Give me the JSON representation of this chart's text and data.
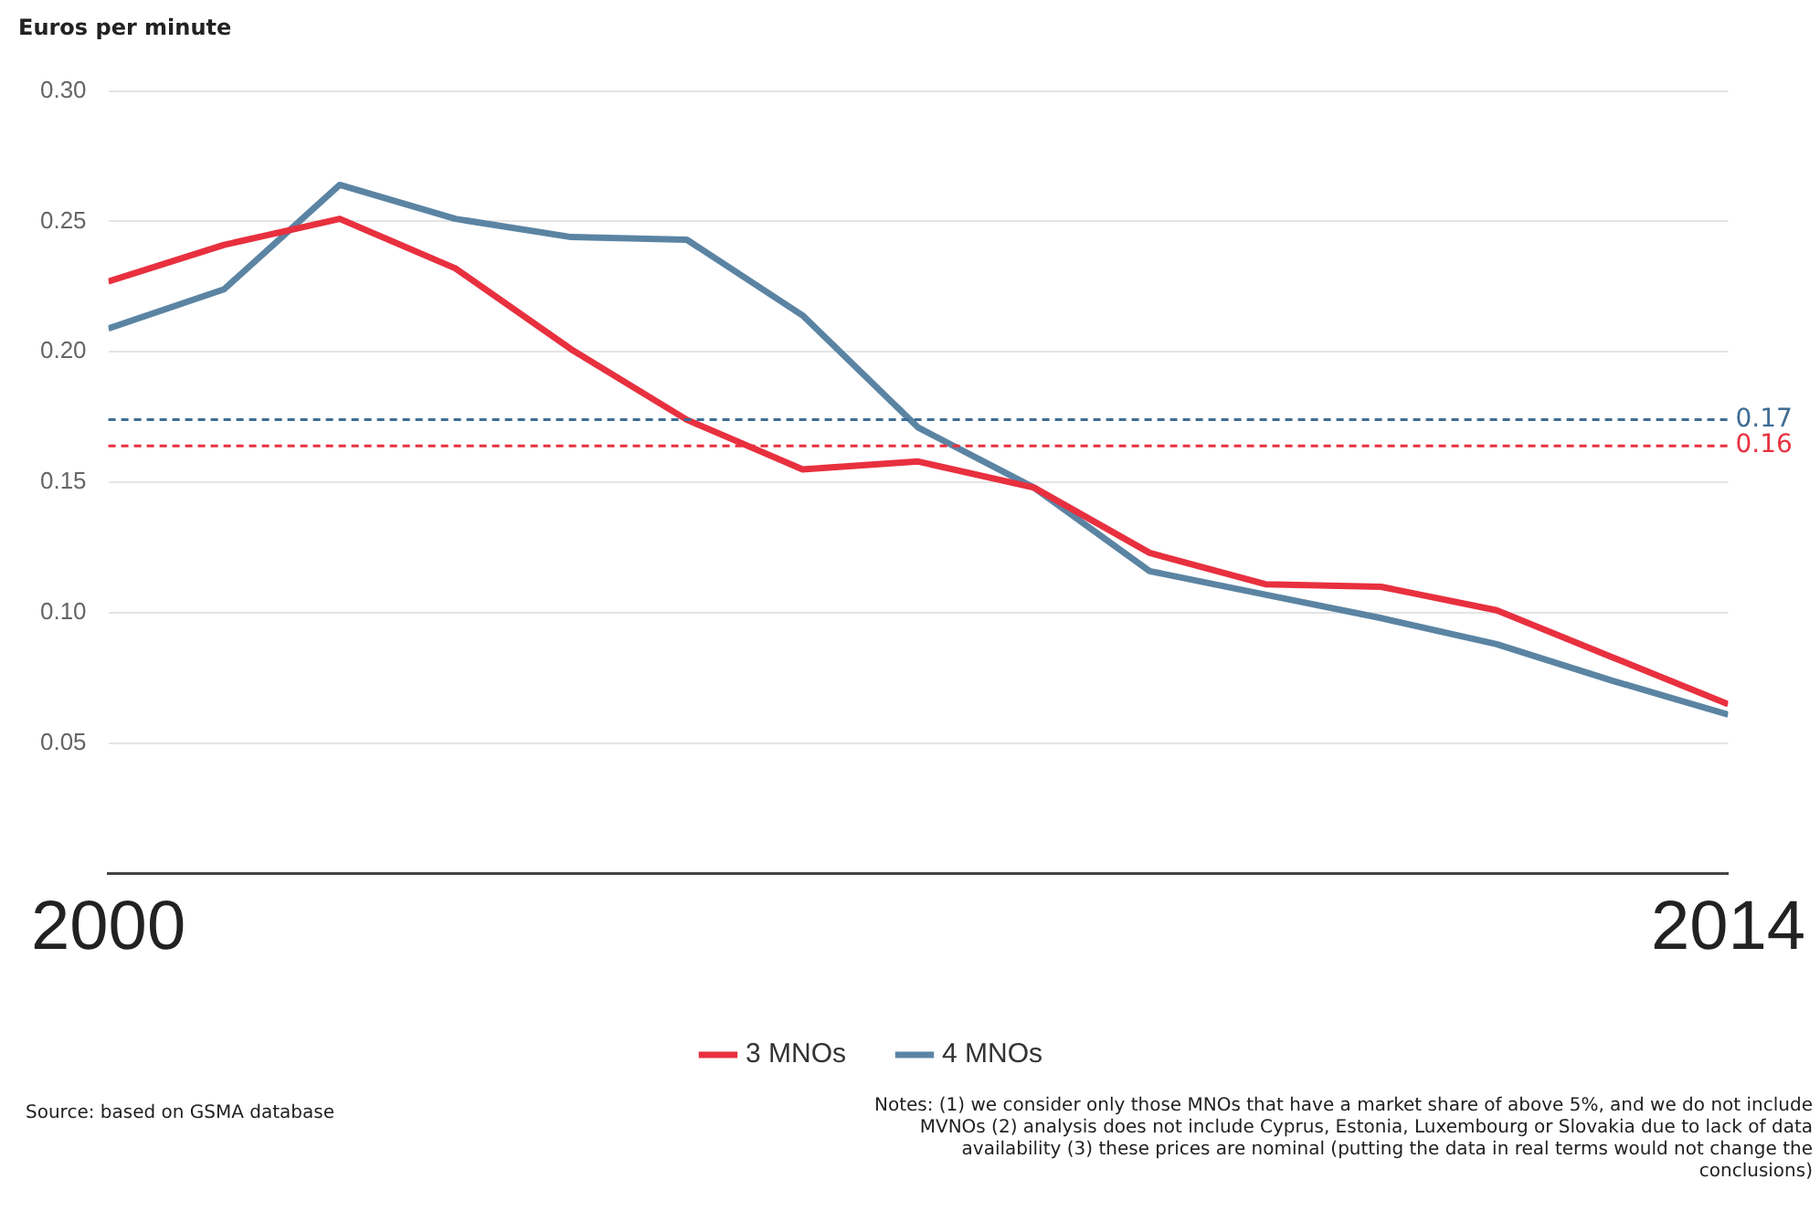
{
  "chart_data": {
    "type": "line",
    "ylabel": "Euros per minute",
    "x": [
      2000,
      2001,
      2002,
      2003,
      2004,
      2005,
      2006,
      2007,
      2008,
      2009,
      2010,
      2011,
      2012,
      2013,
      2014
    ],
    "series": [
      {
        "name": "3 MNOs",
        "color": "#e8303f",
        "values": [
          0.227,
          0.241,
          0.251,
          0.232,
          0.201,
          0.174,
          0.155,
          0.158,
          0.148,
          0.123,
          0.111,
          0.11,
          0.101,
          0.083,
          0.065
        ]
      },
      {
        "name": "4 MNOs",
        "color": "#5b84a3",
        "values": [
          0.209,
          0.224,
          0.264,
          0.251,
          0.244,
          0.243,
          0.214,
          0.171,
          0.148,
          0.116,
          0.107,
          0.098,
          0.088,
          0.074,
          0.061
        ]
      }
    ],
    "xlim": [
      2000,
      2014
    ],
    "xticks": [
      2000,
      2014
    ],
    "ylim": [
      0,
      0.3
    ],
    "yticks": [
      {
        "value": 0.05,
        "label": "0.05"
      },
      {
        "value": 0.1,
        "label": "0.10"
      },
      {
        "value": 0.15,
        "label": "0.15"
      },
      {
        "value": 0.2,
        "label": "0.20"
      },
      {
        "value": 0.25,
        "label": "0.25"
      },
      {
        "value": 0.3,
        "label": "0.30"
      }
    ],
    "ref_lines": [
      {
        "axis": "y",
        "value": 0.174,
        "label": "0.17",
        "color": "#3e6c93",
        "line_style": "dashed"
      },
      {
        "axis": "y",
        "value": 0.164,
        "label": "0.16",
        "color": "#e8303f",
        "line_style": "dashed"
      }
    ],
    "grid": "y",
    "legend": "bottom",
    "marker": "none",
    "line_style": "solid",
    "annotations": [
      "Source: based on GSMA database",
      "Notes: (1) we consider only those MNOs that have a market share of above 5%, and we do not include MVNOs (2) analysis does not include Cyprus, Estonia, Luxembourg or Slovakia due to lack of data availability (3) these prices are nominal (putting the data in real terms would not change the conclusions)"
    ]
  }
}
